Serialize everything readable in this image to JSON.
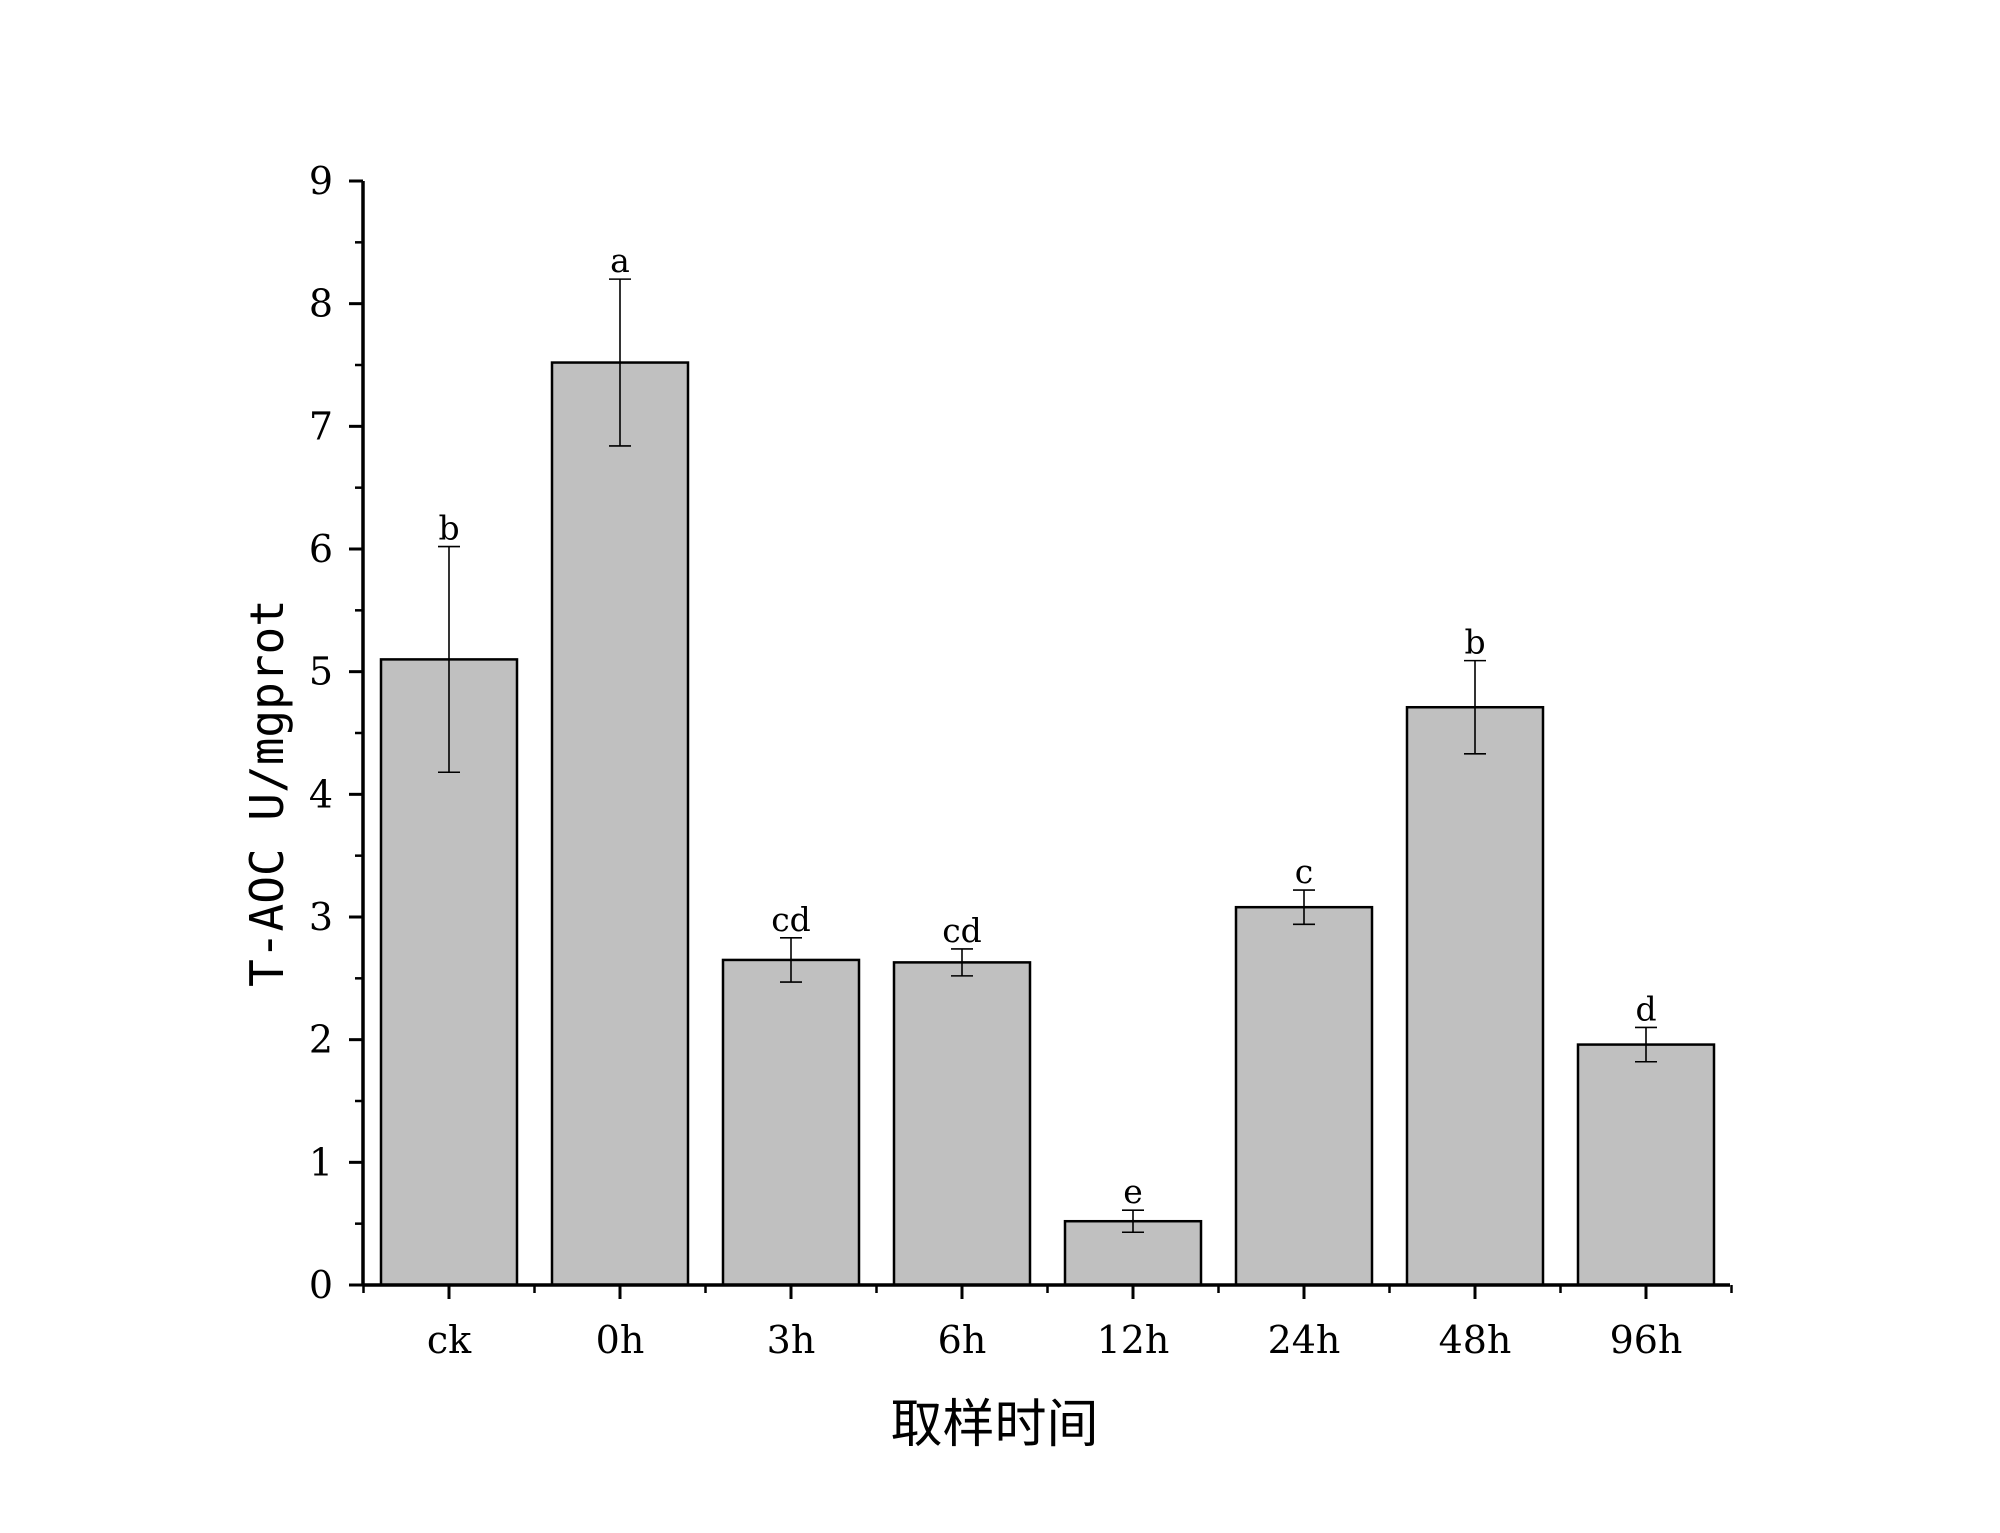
{
  "chart_data": {
    "type": "bar",
    "title": "",
    "xlabel": "取样时间",
    "ylabel": "T-AOC U/mgprot",
    "ylim": [
      0,
      9
    ],
    "yticks": [
      0,
      1,
      2,
      3,
      4,
      5,
      6,
      7,
      8,
      9
    ],
    "categories": [
      "ck",
      "0h",
      "3h",
      "6h",
      "12h",
      "24h",
      "48h",
      "96h"
    ],
    "values": [
      5.1,
      7.52,
      2.65,
      2.63,
      0.52,
      3.08,
      4.71,
      1.96
    ],
    "errors": [
      0.92,
      0.68,
      0.18,
      0.11,
      0.09,
      0.14,
      0.38,
      0.14
    ],
    "significance": [
      "b",
      "a",
      "cd",
      "cd",
      "e",
      "c",
      "b",
      "d"
    ],
    "bar_color": "#c0c0c0",
    "bar_edge_color": "#000000",
    "grid": false,
    "legend": "none"
  }
}
